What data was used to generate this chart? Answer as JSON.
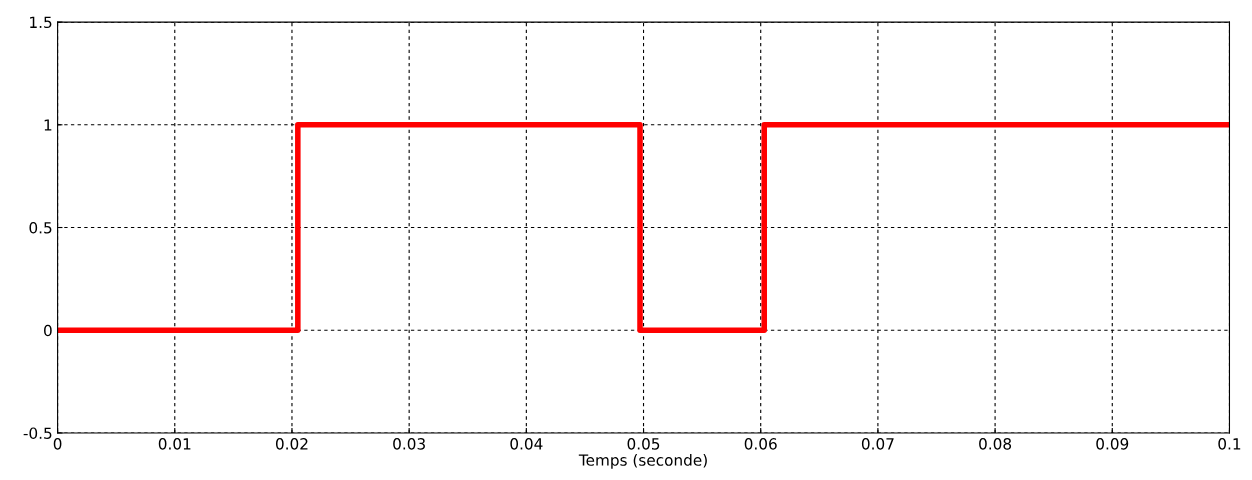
{
  "chart_data": {
    "type": "step",
    "xlabel": "Temps (seconde)",
    "x": [
      0,
      0.0205,
      0.0497,
      0.0603,
      0.1
    ],
    "series": [
      {
        "color": "#ff0000",
        "values": [
          0,
          1,
          0,
          1,
          1
        ]
      }
    ],
    "xlim": [
      0,
      0.1
    ],
    "xticks": [
      0,
      0.01,
      0.02,
      0.03,
      0.04,
      0.05,
      0.06,
      0.07,
      0.08,
      0.09,
      0.1
    ],
    "ylim": [
      -0.5,
      1.5
    ],
    "yticks": [
      -0.5,
      0,
      0.5,
      1,
      1.5
    ],
    "grid": true,
    "line_style": "solid",
    "marker": "none"
  }
}
